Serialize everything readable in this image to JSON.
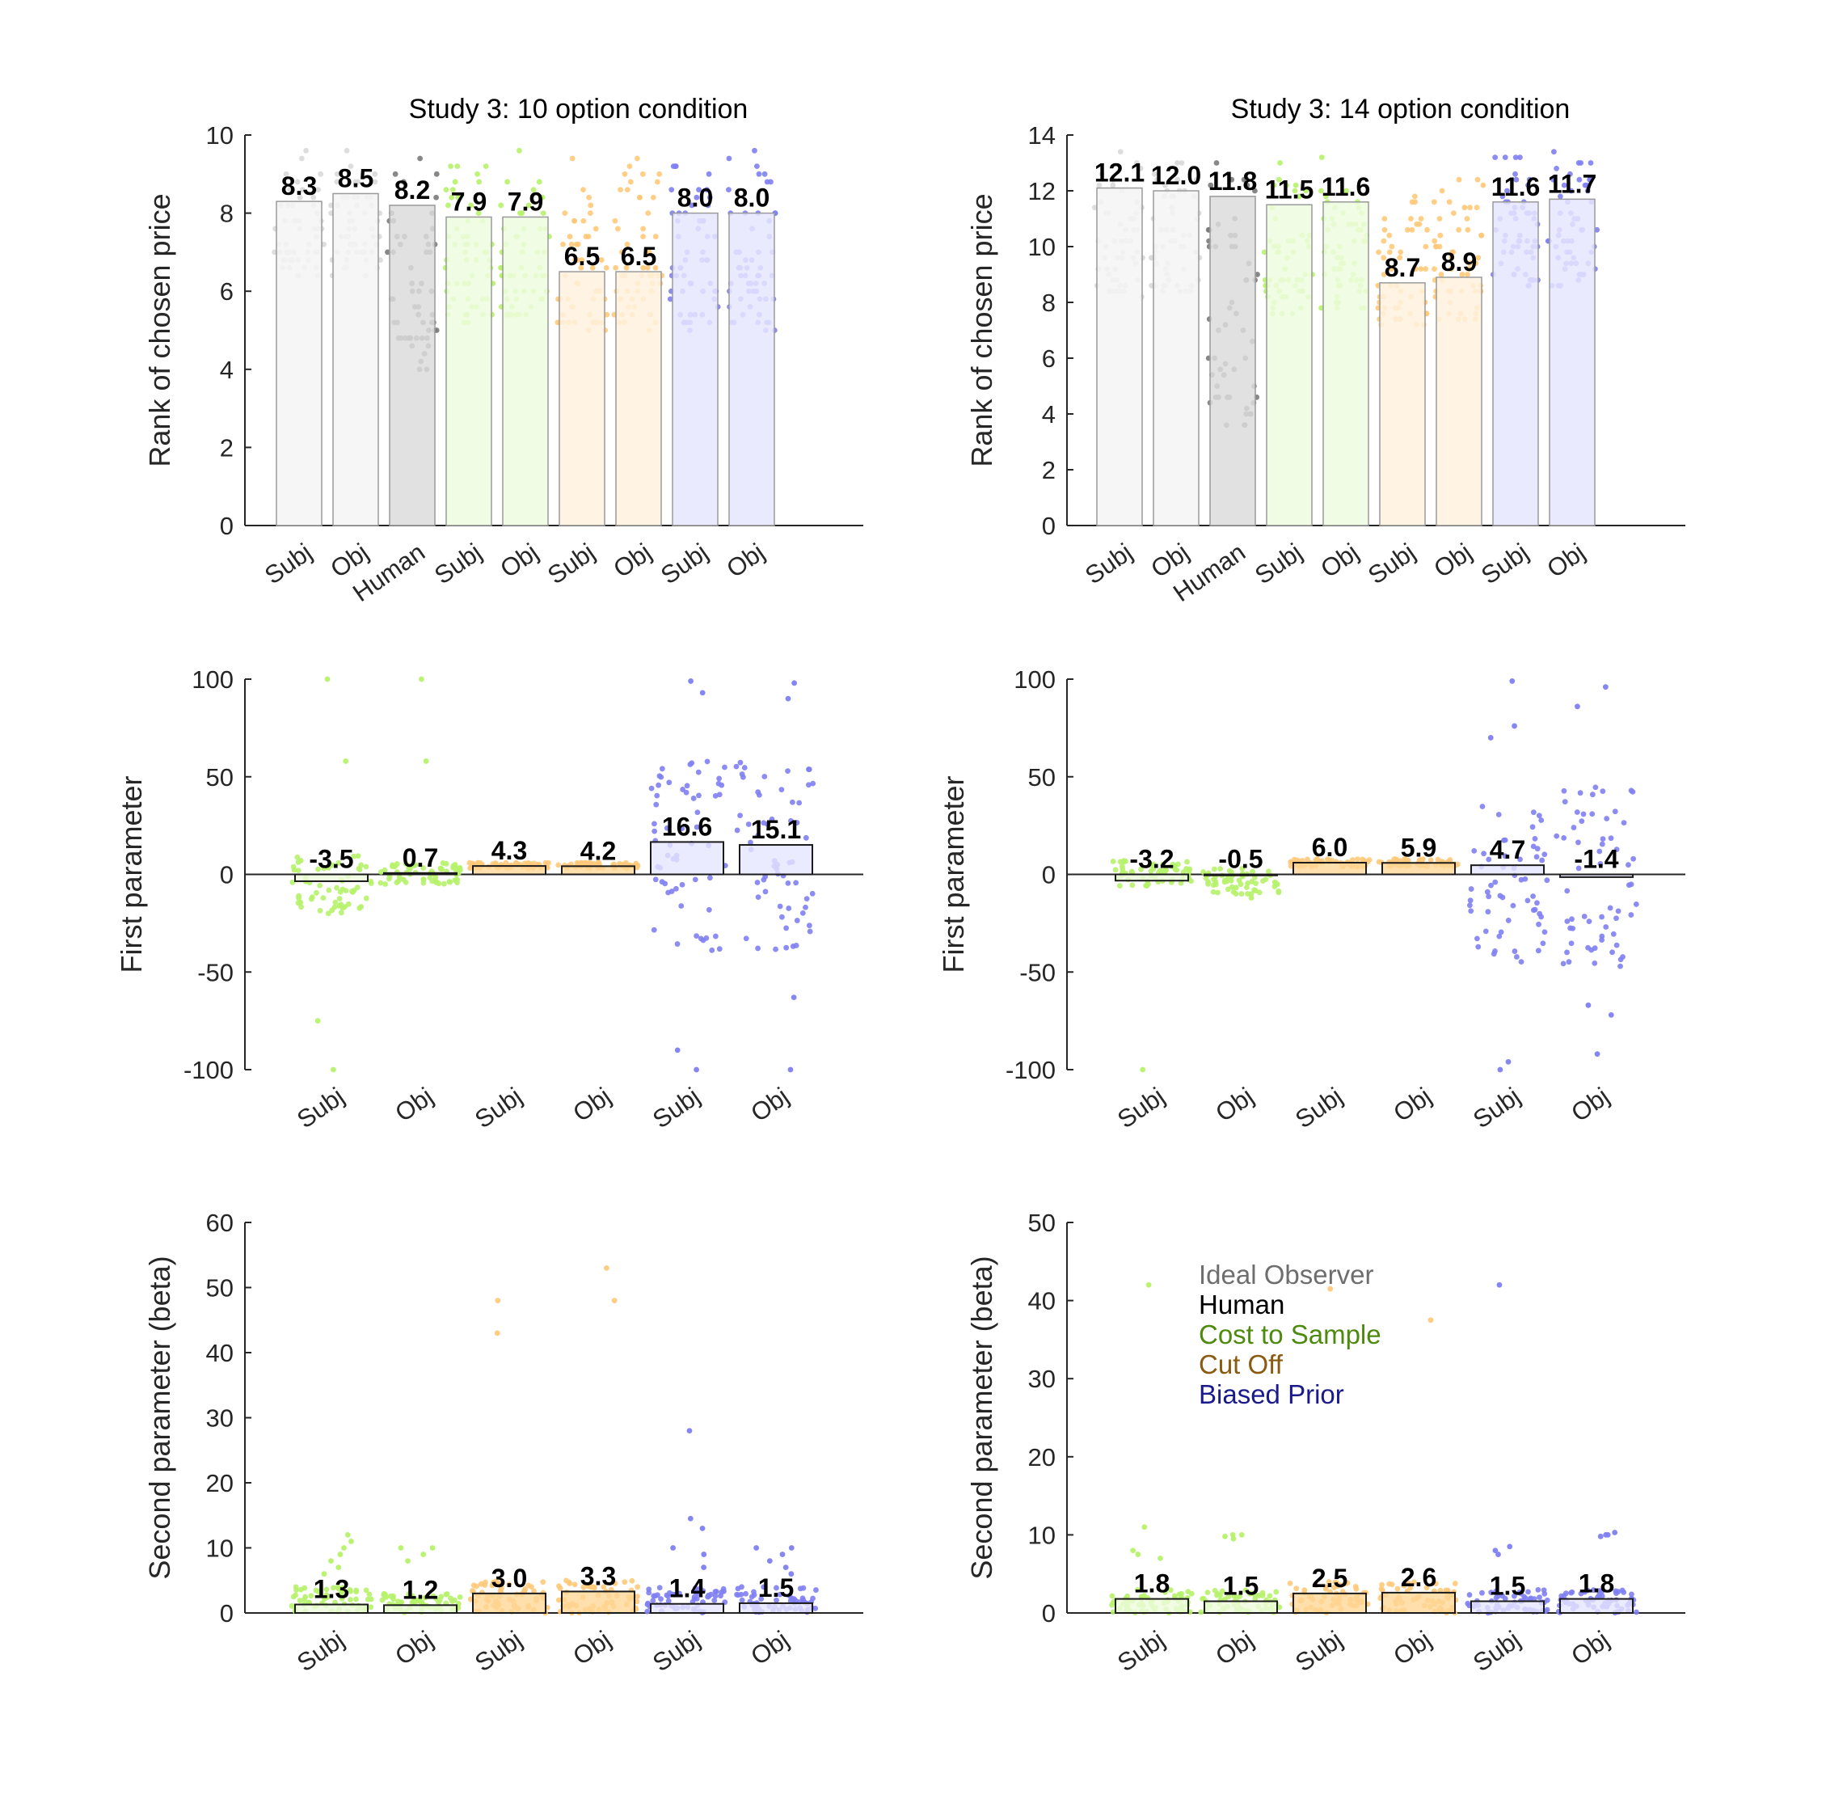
{
  "colors": {
    "ideal": "#d9d9d9",
    "human": "#7a7a7a",
    "cost": "#b6f26a",
    "cutoff": "#ffc97a",
    "biased": "#7f7ff2",
    "ideal_fill": "#f4f4f4",
    "human_fill": "#dcdcdc",
    "cost_fill": "#effbdf",
    "cutoff_fill": "#fff2df",
    "biased_fill": "#e6e6ff",
    "cutoff_fill_strong": "#ffd796",
    "legend_ideal": "#6e6e6e",
    "legend_human": "#000000",
    "legend_cost": "#4d8a0e",
    "legend_cutoff": "#8a5a10",
    "legend_biased": "#1a1a8c"
  },
  "legend": [
    {
      "label": "Ideal Observer",
      "color_key": "legend_ideal"
    },
    {
      "label": "Human",
      "color_key": "legend_human"
    },
    {
      "label": "Cost to Sample",
      "color_key": "legend_cost"
    },
    {
      "label": "Cut Off",
      "color_key": "legend_cutoff"
    },
    {
      "label": "Biased Prior",
      "color_key": "legend_biased"
    }
  ],
  "chart_data": [
    {
      "type": "bar",
      "title": "Study 3: 10 option condition",
      "ylabel": "Rank of chosen price",
      "xlabel": "",
      "ylim": [
        0,
        10
      ],
      "yticks": [
        0,
        2,
        4,
        6,
        8,
        10
      ],
      "categories": [
        "Subj",
        "Obj",
        "Human",
        "Subj",
        "Obj",
        "Subj",
        "Obj",
        "Subj",
        "Obj"
      ],
      "groups": [
        "ideal",
        "ideal",
        "human",
        "cost",
        "cost",
        "cutoff",
        "cutoff",
        "biased",
        "biased"
      ],
      "values": [
        8.3,
        8.5,
        8.2,
        7.9,
        7.9,
        6.5,
        6.5,
        8.0,
        8.0
      ],
      "labels": [
        "8.3",
        "8.5",
        "8.2",
        "7.9",
        "7.9",
        "6.5",
        "6.5",
        "8.0",
        "8.0"
      ],
      "scatter_range": [
        [
          6.3,
          9.8
        ],
        [
          6.4,
          9.8
        ],
        [
          4.0,
          10.0
        ],
        [
          5.2,
          9.6
        ],
        [
          5.2,
          9.8
        ],
        [
          5.0,
          9.6
        ],
        [
          5.0,
          9.6
        ],
        [
          5.0,
          9.6
        ],
        [
          5.0,
          9.8
        ]
      ]
    },
    {
      "type": "bar",
      "title": "Study 3: 14 option condition",
      "ylabel": "Rank of chosen price",
      "xlabel": "",
      "ylim": [
        0,
        14
      ],
      "yticks": [
        0,
        2,
        4,
        6,
        8,
        10,
        12,
        14
      ],
      "categories": [
        "Subj",
        "Obj",
        "Human",
        "Subj",
        "Obj",
        "Subj",
        "Obj",
        "Subj",
        "Obj"
      ],
      "groups": [
        "ideal",
        "ideal",
        "human",
        "cost",
        "cost",
        "cutoff",
        "cutoff",
        "biased",
        "biased"
      ],
      "values": [
        12.1,
        12.0,
        11.8,
        11.5,
        11.6,
        8.7,
        8.9,
        11.6,
        11.7
      ],
      "labels": [
        "12.1",
        "12.0",
        "11.8",
        "11.5",
        "11.6",
        "8.7",
        "8.9",
        "11.6",
        "11.7"
      ],
      "scatter_range": [
        [
          8.1,
          13.6
        ],
        [
          8.3,
          13.6
        ],
        [
          3.5,
          13.8
        ],
        [
          7.6,
          13.6
        ],
        [
          7.8,
          13.4
        ],
        [
          7.0,
          12.6
        ],
        [
          7.3,
          13.2
        ],
        [
          8.5,
          13.6
        ],
        [
          8.6,
          13.6
        ]
      ]
    },
    {
      "type": "bar",
      "title": "",
      "ylabel": "First parameter",
      "xlabel": "",
      "ylim": [
        -100,
        100
      ],
      "yticks": [
        -100,
        -50,
        0,
        50,
        100
      ],
      "categories": [
        "Subj",
        "Obj",
        "Subj",
        "Obj",
        "Subj",
        "Obj"
      ],
      "groups": [
        "cost",
        "cost",
        "cutoff",
        "cutoff",
        "biased",
        "biased"
      ],
      "values": [
        -3.5,
        0.7,
        4.3,
        4.2,
        16.6,
        15.1
      ],
      "labels": [
        "-3.5",
        "0.7",
        "4.3",
        "4.2",
        "16.6",
        "15.1"
      ],
      "scatter_range": [
        [
          -20,
          10
        ],
        [
          -5,
          6
        ],
        [
          3,
          6
        ],
        [
          3,
          6
        ],
        [
          -42,
          60
        ],
        [
          -40,
          58
        ]
      ],
      "outliers": [
        [
          100,
          58,
          -75,
          -100
        ],
        [
          100,
          58
        ],
        [],
        [],
        [
          99,
          93,
          -90,
          -100
        ],
        [
          98,
          90,
          -63,
          -100
        ]
      ]
    },
    {
      "type": "bar",
      "title": "",
      "ylabel": "First parameter",
      "xlabel": "",
      "ylim": [
        -100,
        100
      ],
      "yticks": [
        -100,
        -50,
        0,
        50,
        100
      ],
      "categories": [
        "Subj",
        "Obj",
        "Subj",
        "Obj",
        "Subj",
        "Obj"
      ],
      "groups": [
        "cost",
        "cost",
        "cutoff",
        "cutoff",
        "biased",
        "biased"
      ],
      "values": [
        -3.2,
        -0.5,
        6.0,
        5.9,
        4.7,
        -1.4
      ],
      "labels": [
        "-3.2",
        "-0.5",
        "6.0",
        "5.9",
        "4.7",
        "-1.4"
      ],
      "scatter_range": [
        [
          -6,
          7
        ],
        [
          -10,
          3
        ],
        [
          4,
          8
        ],
        [
          4,
          8
        ],
        [
          -45,
          35
        ],
        [
          -50,
          45
        ]
      ],
      "outliers": [
        [
          -100
        ],
        [
          -12
        ],
        [],
        [],
        [
          99,
          76,
          70,
          -96,
          -100
        ],
        [
          96,
          86,
          -67,
          -72,
          -92
        ]
      ]
    },
    {
      "type": "bar",
      "title": "",
      "ylabel": "Second parameter (beta)",
      "xlabel": "",
      "ylim": [
        0,
        60
      ],
      "yticks": [
        0,
        10,
        20,
        30,
        40,
        50,
        60
      ],
      "categories": [
        "Subj",
        "Obj",
        "Subj",
        "Obj",
        "Subj",
        "Obj"
      ],
      "groups": [
        "cost",
        "cost",
        "cutoff",
        "cutoff",
        "biased",
        "biased"
      ],
      "values": [
        1.3,
        1.2,
        3.0,
        3.3,
        1.4,
        1.5
      ],
      "labels": [
        "1.3",
        "1.2",
        "3.0",
        "3.3",
        "1.4",
        "1.5"
      ],
      "scatter_range": [
        [
          0,
          4
        ],
        [
          0,
          3
        ],
        [
          0,
          5
        ],
        [
          0,
          5
        ],
        [
          0,
          4
        ],
        [
          0,
          4
        ]
      ],
      "outliers": [
        [
          12,
          11,
          10,
          9,
          8,
          7,
          6
        ],
        [
          10,
          10,
          9,
          8
        ],
        [
          48,
          43
        ],
        [
          53,
          48
        ],
        [
          28,
          14.5,
          13,
          10,
          9,
          7
        ],
        [
          10,
          10,
          9,
          8,
          7,
          6
        ]
      ]
    },
    {
      "type": "bar",
      "title": "",
      "ylabel": "Second parameter (beta)",
      "xlabel": "",
      "ylim": [
        0,
        50
      ],
      "yticks": [
        0,
        10,
        20,
        30,
        40,
        50
      ],
      "categories": [
        "Subj",
        "Obj",
        "Subj",
        "Obj",
        "Subj",
        "Obj"
      ],
      "groups": [
        "cost",
        "cost",
        "cutoff",
        "cutoff",
        "biased",
        "biased"
      ],
      "values": [
        1.8,
        1.5,
        2.5,
        2.6,
        1.5,
        1.8
      ],
      "labels": [
        "1.8",
        "1.5",
        "2.5",
        "2.6",
        "1.5",
        "1.8"
      ],
      "scatter_range": [
        [
          0,
          3
        ],
        [
          0,
          3
        ],
        [
          0,
          4
        ],
        [
          0,
          4
        ],
        [
          0,
          3
        ],
        [
          0,
          3
        ]
      ],
      "outliers": [
        [
          42,
          11,
          8,
          7.5,
          7
        ],
        [
          10,
          10,
          9.5,
          9.8
        ],
        [
          41.5
        ],
        [
          37.5
        ],
        [
          42,
          8.5,
          8,
          7.5
        ],
        [
          10.3,
          10,
          10,
          9.8
        ]
      ]
    }
  ]
}
